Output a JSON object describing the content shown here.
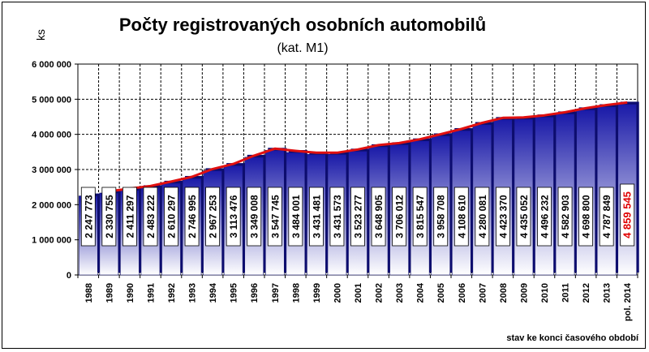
{
  "chart_data": {
    "type": "bar",
    "title": "Počty registrovaných osobních automobilů",
    "subtitle": "(kat. M1)",
    "ylabel": "ks",
    "ylim": [
      0,
      6000000
    ],
    "yticks": [
      0,
      1000000,
      2000000,
      3000000,
      4000000,
      5000000,
      6000000
    ],
    "ytick_labels": [
      "0",
      "1 000 000",
      "2 000 000",
      "3 000 000",
      "4 000 000",
      "5 000 000",
      "6 000 000"
    ],
    "categories": [
      "1988",
      "1989",
      "1990",
      "1991",
      "1992",
      "1993",
      "1994",
      "1995",
      "1996",
      "1997",
      "1998",
      "1999",
      "2000",
      "2001",
      "2002",
      "2003",
      "2004",
      "2005",
      "2006",
      "2007",
      "2008",
      "2009",
      "2010",
      "2011",
      "2012",
      "2013",
      "pol. 2014"
    ],
    "values": [
      2247773,
      2330755,
      2411297,
      2483222,
      2610297,
      2746995,
      2967253,
      3113476,
      3349008,
      3547745,
      3484001,
      3431481,
      3431573,
      3523277,
      3648905,
      3706012,
      3815547,
      3958708,
      4108610,
      4280081,
      4423370,
      4435052,
      4496232,
      4582903,
      4698800,
      4787849,
      4859545
    ],
    "value_labels": [
      "2 247 773",
      "2 330 755",
      "2 411 297",
      "2 483 222",
      "2 610 297",
      "2 746 995",
      "2 967 253",
      "3 113 476",
      "3 349 008",
      "3 547 745",
      "3 484 001",
      "3 431 481",
      "3 431 573",
      "3 523 277",
      "3 648 905",
      "3 706 012",
      "3 815 547",
      "3 958 708",
      "4 108 610",
      "4 280 081",
      "4 423 370",
      "4 435 052",
      "4 496 232",
      "4 582 903",
      "4 698 800",
      "4 787 849",
      "4 859 545"
    ],
    "highlight_index": 26,
    "trend_line": {
      "color": "#e01010",
      "from_index": 1
    },
    "grid": true,
    "footnote": "stav ke konci časového období",
    "colors": {
      "bar_top": "#1a1aa8",
      "bar_bottom": "#ffffff",
      "trend": "#e01010",
      "highlight_label": "#e00000",
      "plot_bg": "#ffffff"
    }
  }
}
